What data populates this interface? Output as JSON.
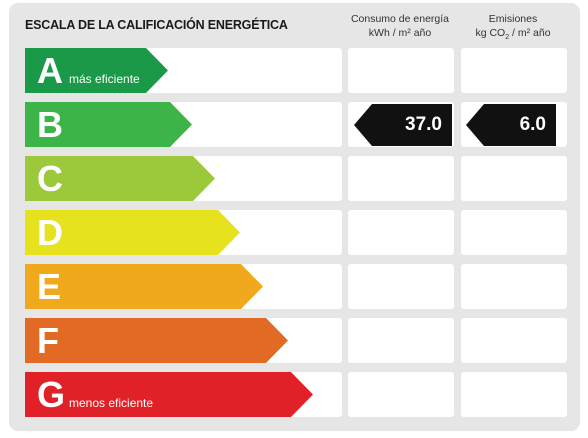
{
  "title": "ESCALA DE LA CALIFICACIÓN ENERGÉTICA",
  "columns": {
    "consumo": {
      "line1": "Consumo de energía",
      "line2": "kWh / m² año"
    },
    "emisiones": {
      "line1": "Emisiones",
      "line2_pre": "kg CO",
      "line2_sub": "2",
      "line2_post": " / m² año"
    }
  },
  "ratings": [
    {
      "letter": "A",
      "label": "más eficiente",
      "color": "#1a9a48"
    },
    {
      "letter": "B",
      "label": "",
      "color": "#3cb448"
    },
    {
      "letter": "C",
      "label": "",
      "color": "#9cc83c"
    },
    {
      "letter": "D",
      "label": "",
      "color": "#e6e21e"
    },
    {
      "letter": "E",
      "label": "",
      "color": "#f0a91c"
    },
    {
      "letter": "F",
      "label": "",
      "color": "#e26a24"
    },
    {
      "letter": "G",
      "label": "menos eficiente",
      "color": "#e02228"
    }
  ],
  "result": {
    "rating": "B",
    "consumo": "37.0",
    "emisiones": "6.0"
  }
}
